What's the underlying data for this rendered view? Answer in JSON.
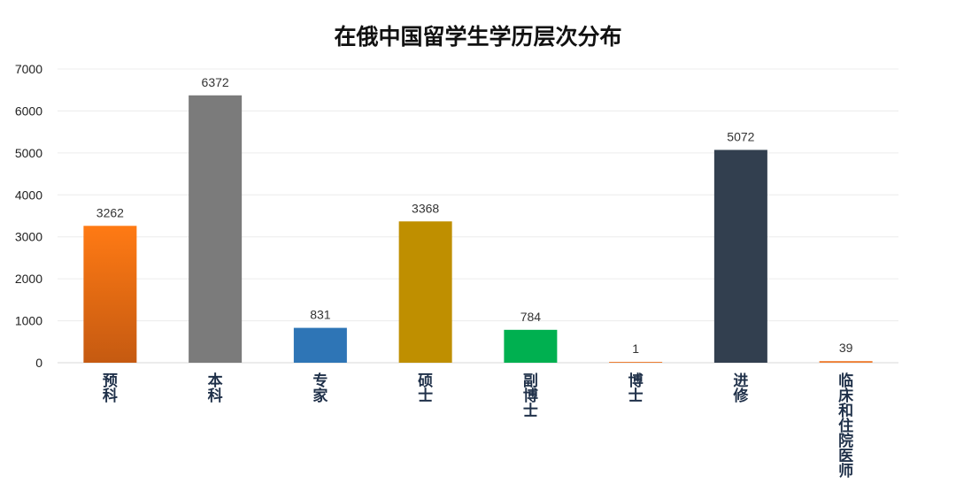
{
  "chart_data": {
    "type": "bar",
    "title": "在俄中国留学生学历层次分布",
    "xlabel": "",
    "ylabel": "",
    "categories": [
      "预科",
      "本科",
      "专家",
      "硕士",
      "副博士",
      "博士",
      "进修",
      "临床和住院医师"
    ],
    "values": [
      3262,
      6372,
      831,
      3368,
      784,
      1,
      5072,
      39
    ],
    "data_labels": [
      "3262",
      "6372",
      "831",
      "3368",
      "784",
      "1",
      "5072",
      "39"
    ],
    "colors": [
      "#e8701e",
      "#7b7b7b",
      "#2e75b6",
      "#bf8f00",
      "#00b050",
      "#ed7d31",
      "#323f4f",
      "#ed7d31"
    ],
    "ylim": [
      0,
      7000
    ],
    "yticks": [
      0,
      1000,
      2000,
      3000,
      4000,
      5000,
      6000,
      7000
    ],
    "ytick_labels": [
      "0",
      "1000",
      "2000",
      "3000",
      "4000",
      "5000",
      "6000",
      "7000"
    ],
    "grid": true,
    "legend": "none",
    "label_orientation": "vertical"
  }
}
